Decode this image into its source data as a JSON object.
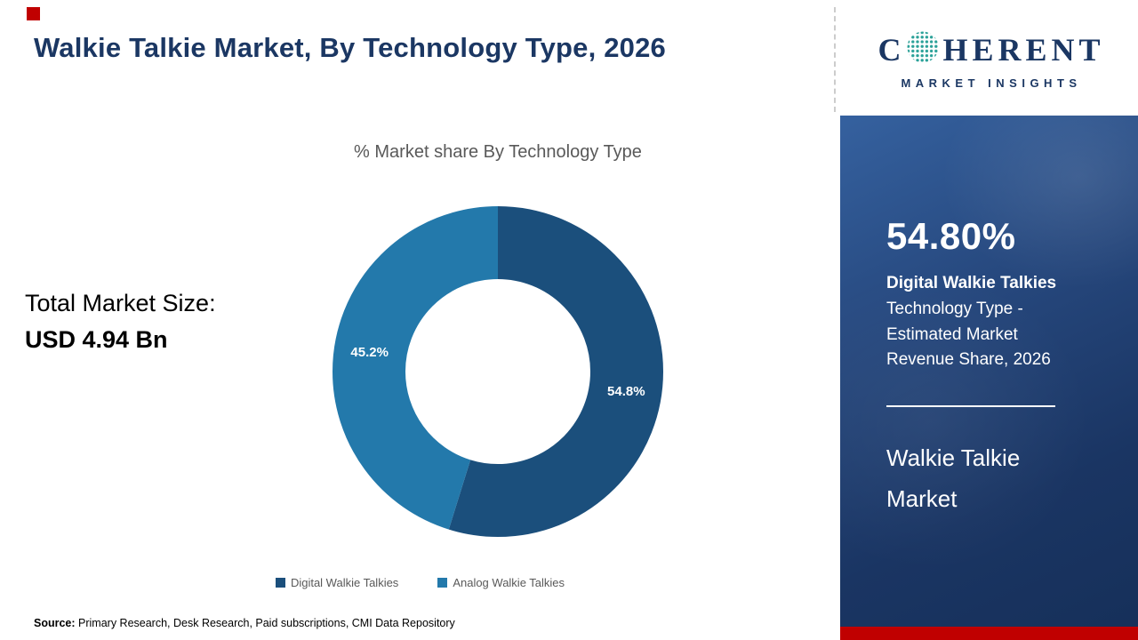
{
  "header": {
    "title": "Walkie Talkie Market, By Technology Type, 2026"
  },
  "logo": {
    "part1": "C",
    "part2": "HERENT",
    "subtitle": "MARKET INSIGHTS",
    "globe_color": "#2aa198"
  },
  "chart_data": {
    "type": "pie",
    "donut": true,
    "title": "% Market share By Technology Type",
    "categories": [
      "Digital Walkie Talkies",
      "Analog Walkie Talkies"
    ],
    "values": [
      54.8,
      45.2
    ],
    "labels": [
      "54.8%",
      "45.2%"
    ],
    "colors": [
      "#1b4f7c",
      "#2379ab"
    ],
    "legend_position": "bottom"
  },
  "left_panel": {
    "total_label": "Total Market Size:",
    "total_value": "USD 4.94 Bn"
  },
  "sidebar": {
    "stat_value": "54.80%",
    "stat_bold": "Digital Walkie Talkies",
    "stat_desc": "Technology Type - Estimated Market Revenue Share, 2026",
    "market_name": "Walkie Talkie Market",
    "accent_red": "#c00000"
  },
  "footer": {
    "source_label": "Source:",
    "source_text": " Primary Research, Desk Research, Paid subscriptions, CMI Data Repository"
  }
}
